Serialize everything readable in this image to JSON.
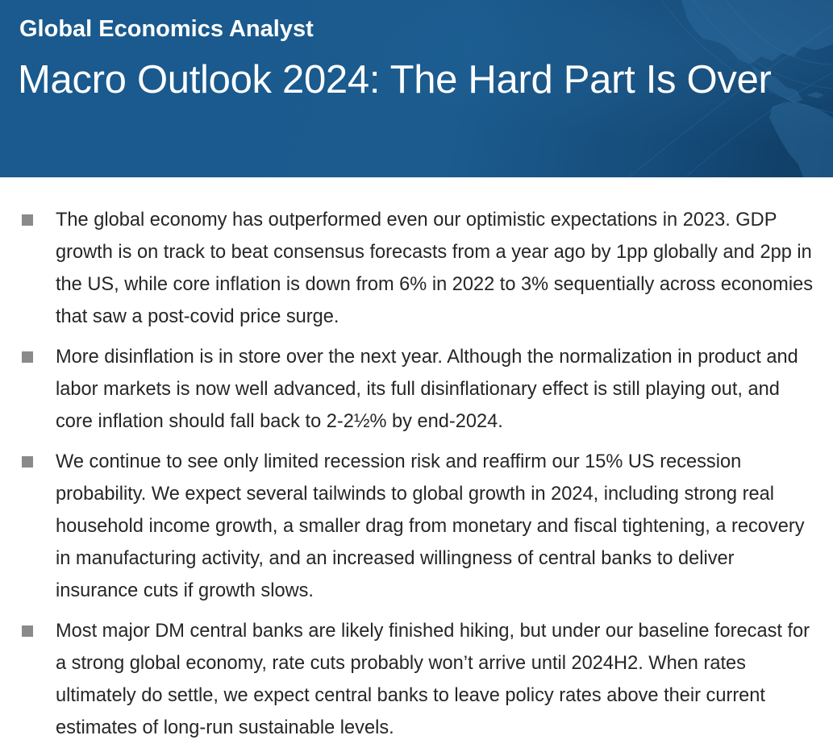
{
  "header": {
    "series_title": "Global Economics Analyst",
    "main_title": "Macro Outlook 2024: The Hard Part Is Over"
  },
  "colors": {
    "banner": "#1b5b8e",
    "banner_dark": "#0f3c63",
    "text": "#262626",
    "bullet": "#8a8a8a"
  },
  "bullets": [
    "The global economy has outperformed even our optimistic expectations in 2023. GDP growth is on track to beat consensus forecasts from a year ago by 1pp globally and 2pp in the US, while core inflation is down from 6% in 2022 to 3% sequentially across economies that saw a post-covid price surge.",
    "More disinflation is in store over the next year.  Although the normalization in product and labor markets is now well advanced, its full disinflationary effect is still playing out, and core inflation should fall back to 2-2½% by end-2024.",
    "We continue to see only limited recession risk and reaffirm our 15% US recession probability.  We expect several tailwinds to global growth in 2024, including strong real household income growth, a smaller drag from monetary and fiscal tightening, a recovery in manufacturing activity, and an increased willingness of central banks to deliver insurance cuts if growth slows.",
    "Most major DM central banks are likely finished hiking, but under our baseline forecast for a strong global economy, rate cuts probably won’t arrive until 2024H2.  When rates ultimately do settle, we expect central banks to leave policy rates above their current estimates of long-run sustainable levels."
  ]
}
